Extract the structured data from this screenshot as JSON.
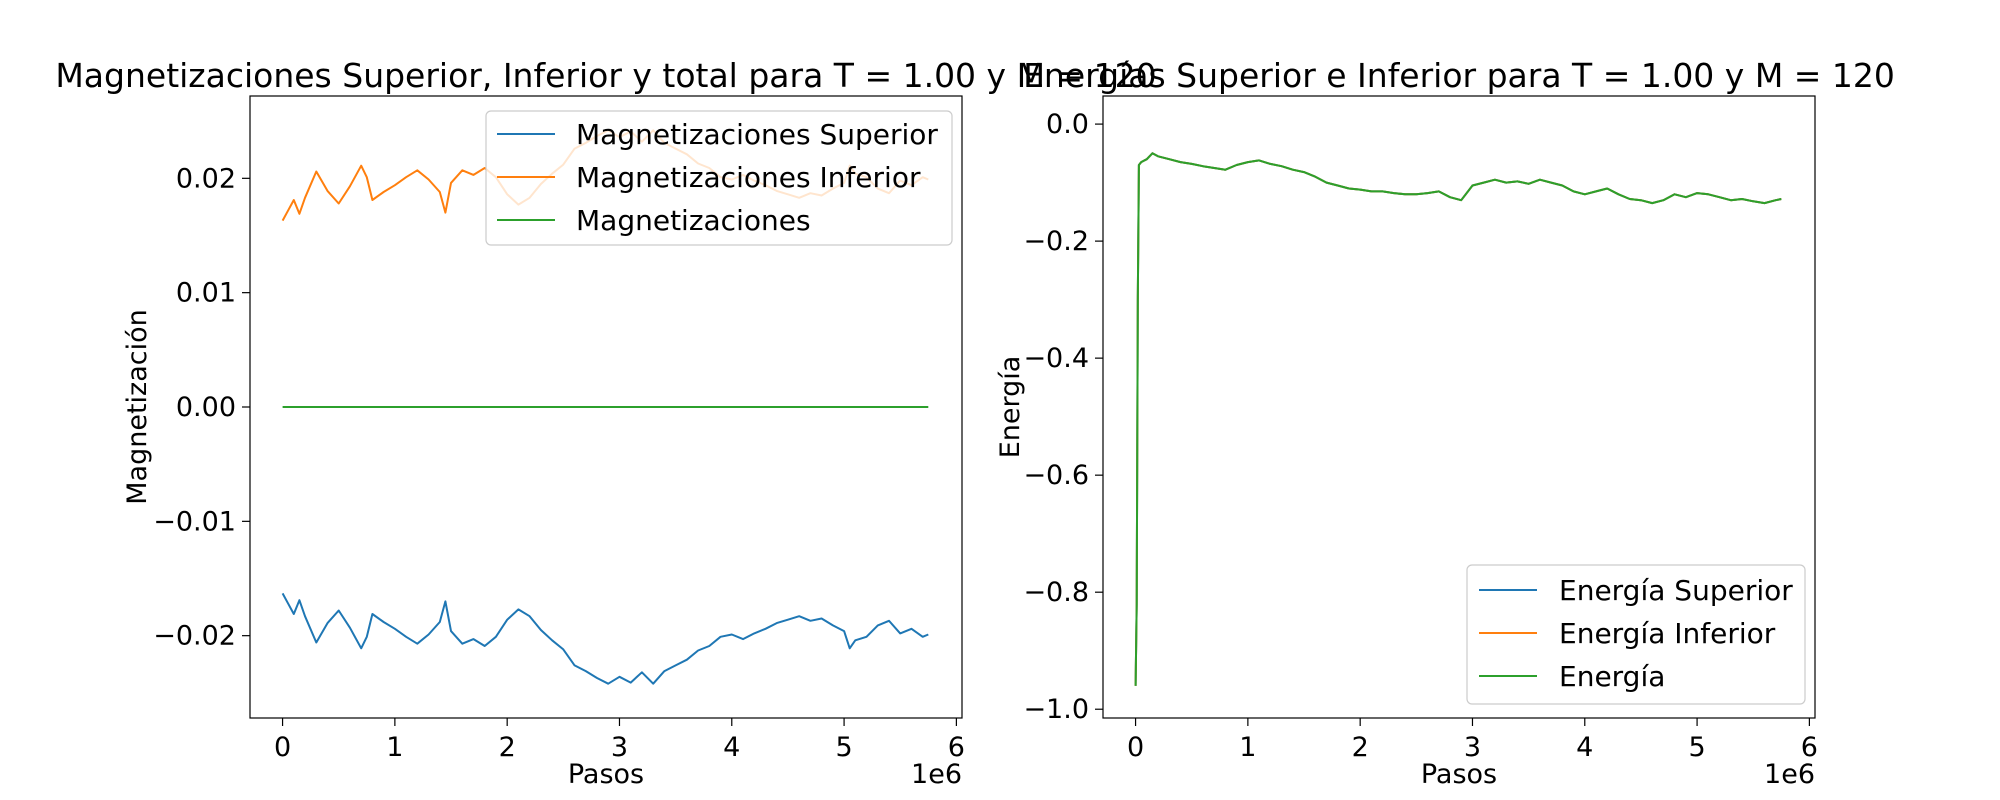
{
  "chart_data": [
    {
      "type": "line",
      "title": "Magnetizaciones Superior, Inferior y total para T = 1.00 y M = 120",
      "xlabel": "Pasos",
      "ylabel": "Magnetización",
      "x_offset_label": "1e6",
      "xlim": [
        -0.29,
        6.05
      ],
      "ylim": [
        -0.0272,
        0.0272
      ],
      "x_ticks": [
        0,
        1,
        2,
        3,
        4,
        5,
        6
      ],
      "y_ticks": [
        -0.02,
        -0.01,
        0.0,
        0.01,
        0.02
      ],
      "y_tick_labels": [
        "−0.02",
        "−0.01",
        "0.00",
        "0.01",
        "0.02"
      ],
      "grid": false,
      "legend_position": "upper right",
      "series": [
        {
          "name": "Magnetizaciones Superior",
          "color": "#1f77b4",
          "x": [
            0,
            0.05,
            0.1,
            0.15,
            0.2,
            0.3,
            0.4,
            0.5,
            0.6,
            0.7,
            0.75,
            0.8,
            0.9,
            1.0,
            1.1,
            1.2,
            1.3,
            1.4,
            1.45,
            1.5,
            1.6,
            1.7,
            1.8,
            1.9,
            2.0,
            2.1,
            2.2,
            2.3,
            2.4,
            2.5,
            2.6,
            2.7,
            2.8,
            2.9,
            3.0,
            3.1,
            3.2,
            3.3,
            3.4,
            3.5,
            3.6,
            3.7,
            3.8,
            3.9,
            4.0,
            4.1,
            4.2,
            4.3,
            4.4,
            4.5,
            4.6,
            4.7,
            4.8,
            4.9,
            5.0,
            5.05,
            5.1,
            5.2,
            5.3,
            5.4,
            5.5,
            5.6,
            5.7,
            5.75
          ],
          "values": [
            -0.0163,
            -0.0172,
            -0.0181,
            -0.0169,
            -0.0183,
            -0.0206,
            -0.0189,
            -0.0178,
            -0.0193,
            -0.0211,
            -0.0201,
            -0.0181,
            -0.0188,
            -0.0194,
            -0.0201,
            -0.0207,
            -0.0199,
            -0.0188,
            -0.017,
            -0.0196,
            -0.0207,
            -0.0203,
            -0.0209,
            -0.0201,
            -0.0186,
            -0.0177,
            -0.0183,
            -0.0195,
            -0.0204,
            -0.0212,
            -0.0226,
            -0.0231,
            -0.0237,
            -0.0242,
            -0.0236,
            -0.0241,
            -0.0232,
            -0.0242,
            -0.0231,
            -0.0226,
            -0.0221,
            -0.0213,
            -0.0209,
            -0.0201,
            -0.0199,
            -0.0203,
            -0.0198,
            -0.0194,
            -0.0189,
            -0.0186,
            -0.0183,
            -0.0187,
            -0.0185,
            -0.0191,
            -0.0196,
            -0.0211,
            -0.0204,
            -0.0201,
            -0.0191,
            -0.0187,
            -0.0198,
            -0.0194,
            -0.0201,
            -0.0199
          ]
        },
        {
          "name": "Magnetizaciones Inferior",
          "color": "#ff7f0e",
          "x": [
            0,
            0.05,
            0.1,
            0.15,
            0.2,
            0.3,
            0.4,
            0.5,
            0.6,
            0.7,
            0.75,
            0.8,
            0.9,
            1.0,
            1.1,
            1.2,
            1.3,
            1.4,
            1.45,
            1.5,
            1.6,
            1.7,
            1.8,
            1.9,
            2.0,
            2.1,
            2.2,
            2.3,
            2.4,
            2.5,
            2.6,
            2.7,
            2.8,
            2.9,
            3.0,
            3.1,
            3.2,
            3.3,
            3.4,
            3.5,
            3.6,
            3.7,
            3.8,
            3.9,
            4.0,
            4.1,
            4.2,
            4.3,
            4.4,
            4.5,
            4.6,
            4.7,
            4.8,
            4.9,
            5.0,
            5.05,
            5.1,
            5.2,
            5.3,
            5.4,
            5.5,
            5.6,
            5.7,
            5.75
          ],
          "values": [
            0.0163,
            0.0172,
            0.0181,
            0.0169,
            0.0183,
            0.0206,
            0.0189,
            0.0178,
            0.0193,
            0.0211,
            0.0201,
            0.0181,
            0.0188,
            0.0194,
            0.0201,
            0.0207,
            0.0199,
            0.0188,
            0.017,
            0.0196,
            0.0207,
            0.0203,
            0.0209,
            0.0201,
            0.0186,
            0.0177,
            0.0183,
            0.0195,
            0.0204,
            0.0212,
            0.0226,
            0.0231,
            0.0237,
            0.0242,
            0.0236,
            0.0241,
            0.0232,
            0.0242,
            0.0231,
            0.0226,
            0.0221,
            0.0213,
            0.0209,
            0.0201,
            0.0199,
            0.0203,
            0.0198,
            0.0194,
            0.0189,
            0.0186,
            0.0183,
            0.0187,
            0.0185,
            0.0191,
            0.0196,
            0.0211,
            0.0204,
            0.0201,
            0.0191,
            0.0187,
            0.0198,
            0.0194,
            0.0201,
            0.0199
          ]
        },
        {
          "name": "Magnetizaciones",
          "color": "#2ca02c",
          "x": [
            0,
            5.75
          ],
          "values": [
            0.0,
            0.0
          ]
        }
      ]
    },
    {
      "type": "line",
      "title": "Energías Superior e Inferior para T = 1.00 y M = 120",
      "xlabel": "Pasos",
      "ylabel": "Energía",
      "x_offset_label": "1e6",
      "xlim": [
        -0.29,
        6.05
      ],
      "ylim": [
        -1.015,
        0.048
      ],
      "x_ticks": [
        0,
        1,
        2,
        3,
        4,
        5,
        6
      ],
      "y_ticks": [
        -1.0,
        -0.8,
        -0.6,
        -0.4,
        -0.2,
        0.0
      ],
      "y_tick_labels": [
        "−1.0",
        "−0.8",
        "−0.6",
        "−0.4",
        "−0.2",
        "0.0"
      ],
      "grid": false,
      "legend_position": "lower right",
      "series": [
        {
          "name": "Energía Superior",
          "color": "#1f77b4",
          "x": [
            0,
            0.01,
            0.02,
            0.03,
            0.05,
            0.1,
            0.15,
            0.2,
            0.3,
            0.4,
            0.5,
            0.6,
            0.7,
            0.8,
            0.9,
            1.0,
            1.1,
            1.2,
            1.3,
            1.4,
            1.5,
            1.6,
            1.7,
            1.8,
            1.9,
            2.0,
            2.1,
            2.2,
            2.3,
            2.4,
            2.5,
            2.6,
            2.7,
            2.8,
            2.9,
            3.0,
            3.1,
            3.2,
            3.3,
            3.4,
            3.5,
            3.6,
            3.7,
            3.8,
            3.9,
            4.0,
            4.1,
            4.2,
            4.3,
            4.4,
            4.5,
            4.6,
            4.7,
            4.8,
            4.9,
            5.0,
            5.1,
            5.2,
            5.3,
            5.4,
            5.5,
            5.6,
            5.7,
            5.75
          ],
          "values": [
            -0.96,
            -0.82,
            -0.3,
            -0.07,
            -0.065,
            -0.06,
            -0.05,
            -0.055,
            -0.06,
            -0.065,
            -0.068,
            -0.072,
            -0.075,
            -0.078,
            -0.07,
            -0.065,
            -0.062,
            -0.068,
            -0.072,
            -0.078,
            -0.082,
            -0.09,
            -0.1,
            -0.105,
            -0.11,
            -0.112,
            -0.115,
            -0.115,
            -0.118,
            -0.12,
            -0.12,
            -0.118,
            -0.115,
            -0.125,
            -0.13,
            -0.105,
            -0.1,
            -0.095,
            -0.1,
            -0.098,
            -0.102,
            -0.095,
            -0.1,
            -0.105,
            -0.115,
            -0.12,
            -0.115,
            -0.11,
            -0.12,
            -0.128,
            -0.13,
            -0.135,
            -0.13,
            -0.12,
            -0.125,
            -0.118,
            -0.12,
            -0.125,
            -0.13,
            -0.128,
            -0.132,
            -0.135,
            -0.13,
            -0.128
          ]
        },
        {
          "name": "Energía Inferior",
          "color": "#ff7f0e",
          "x": [
            0,
            0.01,
            0.02,
            0.03,
            0.05,
            0.1,
            0.15,
            0.2,
            0.3,
            0.4,
            0.5,
            0.6,
            0.7,
            0.8,
            0.9,
            1.0,
            1.1,
            1.2,
            1.3,
            1.4,
            1.5,
            1.6,
            1.7,
            1.8,
            1.9,
            2.0,
            2.1,
            2.2,
            2.3,
            2.4,
            2.5,
            2.6,
            2.7,
            2.8,
            2.9,
            3.0,
            3.1,
            3.2,
            3.3,
            3.4,
            3.5,
            3.6,
            3.7,
            3.8,
            3.9,
            4.0,
            4.1,
            4.2,
            4.3,
            4.4,
            4.5,
            4.6,
            4.7,
            4.8,
            4.9,
            5.0,
            5.1,
            5.2,
            5.3,
            5.4,
            5.5,
            5.6,
            5.7,
            5.75
          ],
          "values": [
            -0.96,
            -0.82,
            -0.3,
            -0.07,
            -0.065,
            -0.06,
            -0.05,
            -0.055,
            -0.06,
            -0.065,
            -0.068,
            -0.072,
            -0.075,
            -0.078,
            -0.07,
            -0.065,
            -0.062,
            -0.068,
            -0.072,
            -0.078,
            -0.082,
            -0.09,
            -0.1,
            -0.105,
            -0.11,
            -0.112,
            -0.115,
            -0.115,
            -0.118,
            -0.12,
            -0.12,
            -0.118,
            -0.115,
            -0.125,
            -0.13,
            -0.105,
            -0.1,
            -0.095,
            -0.1,
            -0.098,
            -0.102,
            -0.095,
            -0.1,
            -0.105,
            -0.115,
            -0.12,
            -0.115,
            -0.11,
            -0.12,
            -0.128,
            -0.13,
            -0.135,
            -0.13,
            -0.12,
            -0.125,
            -0.118,
            -0.12,
            -0.125,
            -0.13,
            -0.128,
            -0.132,
            -0.135,
            -0.13,
            -0.128
          ]
        },
        {
          "name": "Energía",
          "color": "#2ca02c",
          "x": [
            0,
            0.01,
            0.02,
            0.03,
            0.05,
            0.1,
            0.15,
            0.2,
            0.3,
            0.4,
            0.5,
            0.6,
            0.7,
            0.8,
            0.9,
            1.0,
            1.1,
            1.2,
            1.3,
            1.4,
            1.5,
            1.6,
            1.7,
            1.8,
            1.9,
            2.0,
            2.1,
            2.2,
            2.3,
            2.4,
            2.5,
            2.6,
            2.7,
            2.8,
            2.9,
            3.0,
            3.1,
            3.2,
            3.3,
            3.4,
            3.5,
            3.6,
            3.7,
            3.8,
            3.9,
            4.0,
            4.1,
            4.2,
            4.3,
            4.4,
            4.5,
            4.6,
            4.7,
            4.8,
            4.9,
            5.0,
            5.1,
            5.2,
            5.3,
            5.4,
            5.5,
            5.6,
            5.7,
            5.75
          ],
          "values": [
            -0.96,
            -0.82,
            -0.3,
            -0.07,
            -0.065,
            -0.06,
            -0.05,
            -0.055,
            -0.06,
            -0.065,
            -0.068,
            -0.072,
            -0.075,
            -0.078,
            -0.07,
            -0.065,
            -0.062,
            -0.068,
            -0.072,
            -0.078,
            -0.082,
            -0.09,
            -0.1,
            -0.105,
            -0.11,
            -0.112,
            -0.115,
            -0.115,
            -0.118,
            -0.12,
            -0.12,
            -0.118,
            -0.115,
            -0.125,
            -0.13,
            -0.105,
            -0.1,
            -0.095,
            -0.1,
            -0.098,
            -0.102,
            -0.095,
            -0.1,
            -0.105,
            -0.115,
            -0.12,
            -0.115,
            -0.11,
            -0.12,
            -0.128,
            -0.13,
            -0.135,
            -0.13,
            -0.12,
            -0.125,
            -0.118,
            -0.12,
            -0.125,
            -0.13,
            -0.128,
            -0.132,
            -0.135,
            -0.13,
            -0.128
          ]
        }
      ]
    }
  ]
}
